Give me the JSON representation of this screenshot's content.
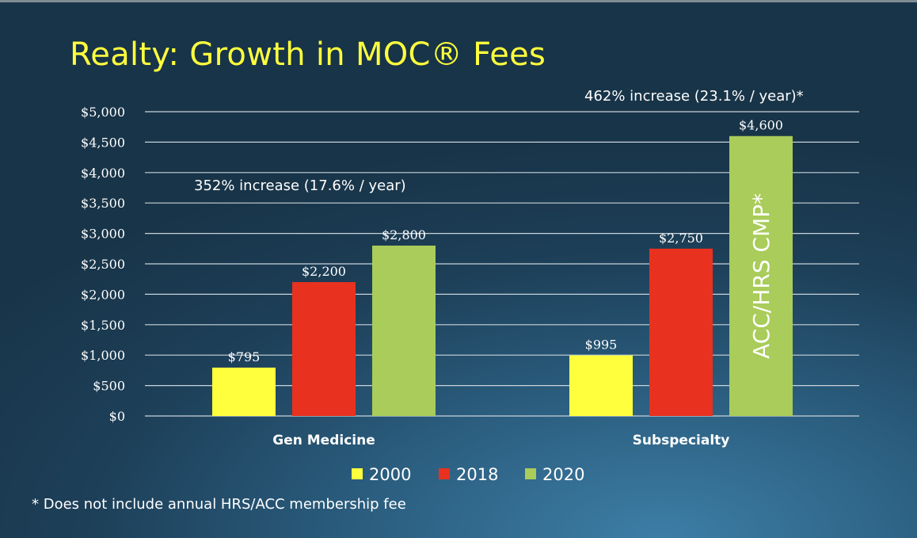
{
  "title": "Realty: Growth in MOC® Fees",
  "footnote": "* Does not include annual HRS/ACC membership fee",
  "chart_data": {
    "type": "bar",
    "categories": [
      "Gen Medicine",
      "Subspecialty"
    ],
    "series": [
      {
        "name": "2000",
        "color": "#ffff3d",
        "values": [
          795,
          995
        ],
        "labels": [
          "$795",
          "$995"
        ]
      },
      {
        "name": "2018",
        "color": "#e8321f",
        "values": [
          2200,
          2750
        ],
        "labels": [
          "$2,200",
          "$2,750"
        ]
      },
      {
        "name": "2020",
        "color": "#a9cc5a",
        "values": [
          2800,
          4600
        ],
        "labels": [
          "$2,800",
          "$4,600"
        ]
      }
    ],
    "ylim": [
      0,
      5000
    ],
    "yticks": [
      0,
      500,
      1000,
      1500,
      2000,
      2500,
      3000,
      3500,
      4000,
      4500,
      5000
    ],
    "ytick_labels": [
      "$0",
      "$500",
      "$1,000",
      "$1,500",
      "$2,000",
      "$2,500",
      "$3,000",
      "$3,500",
      "$4,000",
      "$4,500",
      "$5,000"
    ],
    "annotations": [
      "352% increase (17.6% / year)",
      "462% increase (23.1% / year)*"
    ],
    "bar_text": "ACC/HRS CMP*",
    "grid": true,
    "legend_position": "bottom"
  }
}
